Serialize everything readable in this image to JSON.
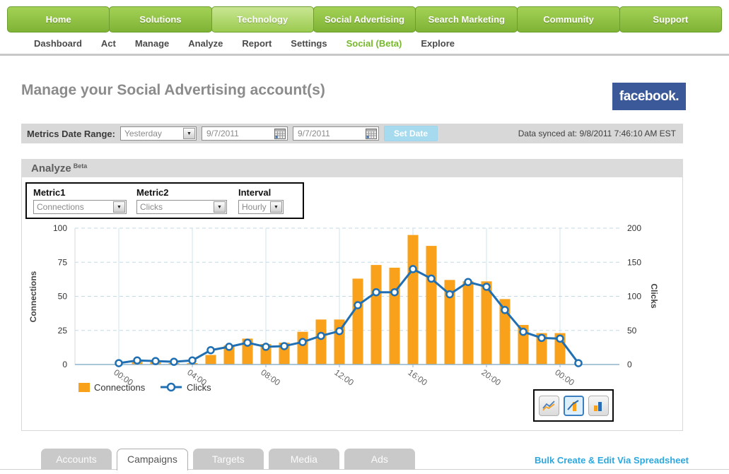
{
  "nav": {
    "items": [
      "Home",
      "Solutions",
      "Technology",
      "Social Advertising",
      "Search Marketing",
      "Community",
      "Support"
    ],
    "active": "Technology"
  },
  "subnav": {
    "items": [
      "Dashboard",
      "Act",
      "Manage",
      "Analyze",
      "Report",
      "Settings",
      "Social (Beta)",
      "Explore"
    ],
    "highlight": "Social (Beta)"
  },
  "page": {
    "title": "Manage your Social Advertising account(s)",
    "brand": "facebook."
  },
  "date_bar": {
    "label": "Metrics Date Range:",
    "range_select": "Yesterday",
    "start_date": "9/7/2011",
    "end_date": "9/7/2011",
    "set_date_label": "Set Date",
    "synced": "Data synced at: 9/8/2011 7:46:10 AM EST"
  },
  "analyze": {
    "title": "Analyze",
    "beta": "Beta",
    "metric1_label": "Metric1",
    "metric1_value": "Connections",
    "metric2_label": "Metric2",
    "metric2_value": "Clicks",
    "interval_label": "Interval",
    "interval_value": "Hourly"
  },
  "chart_data": {
    "type": "combo",
    "categories": [
      "00:00",
      "01:00",
      "02:00",
      "03:00",
      "04:00",
      "05:00",
      "06:00",
      "07:00",
      "08:00",
      "09:00",
      "10:00",
      "11:00",
      "12:00",
      "13:00",
      "14:00",
      "15:00",
      "16:00",
      "17:00",
      "18:00",
      "19:00",
      "20:00",
      "21:00",
      "22:00",
      "23:00",
      "00:00",
      "01:00"
    ],
    "x_labels_visible": [
      "00:00",
      "04:00",
      "08:00",
      "12:00",
      "16:00",
      "20:00",
      "00:00"
    ],
    "gridline_indices": [
      0,
      4,
      8,
      12,
      16,
      20,
      24
    ],
    "series": [
      {
        "name": "Connections",
        "type": "bar",
        "axis": "left",
        "color": "#F9A11B",
        "values": [
          0,
          2,
          2,
          1,
          1,
          7,
          14,
          19,
          15,
          16,
          24,
          33,
          33,
          63,
          73,
          71,
          95,
          87,
          62,
          61,
          61,
          48,
          29,
          23,
          23,
          null
        ]
      },
      {
        "name": "Clicks",
        "type": "line",
        "axis": "right",
        "color": "#1F6FB2",
        "values": [
          2,
          6,
          5,
          4,
          6,
          21,
          26,
          32,
          26,
          27,
          33,
          42,
          49,
          87,
          106,
          106,
          140,
          126,
          103,
          121,
          114,
          80,
          48,
          39,
          38,
          2
        ]
      }
    ],
    "left_axis": {
      "label": "Connections",
      "min": 0,
      "max": 100,
      "ticks": [
        0,
        25,
        50,
        75,
        100
      ]
    },
    "right_axis": {
      "label": "Clicks",
      "min": 0,
      "max": 200,
      "ticks": [
        0,
        50,
        100,
        150,
        200
      ]
    },
    "legend_position": "bottom-left",
    "grid": true
  },
  "tabs": {
    "items": [
      "Accounts",
      "Campaigns",
      "Targets",
      "Media",
      "Ads"
    ],
    "active": "Campaigns"
  },
  "bulk_link": "Bulk Create & Edit Via Spreadsheet",
  "colors": {
    "nav_green": "#8DC63F",
    "nav_active_green": "#B5DC7C",
    "bar_orange": "#F9A11B",
    "line_blue": "#1F6FB2",
    "facebook_blue": "#3B5998",
    "set_date_blue": "#A5DAEF",
    "link_blue": "#2CA8DF",
    "subnav_green": "#76B82A"
  }
}
